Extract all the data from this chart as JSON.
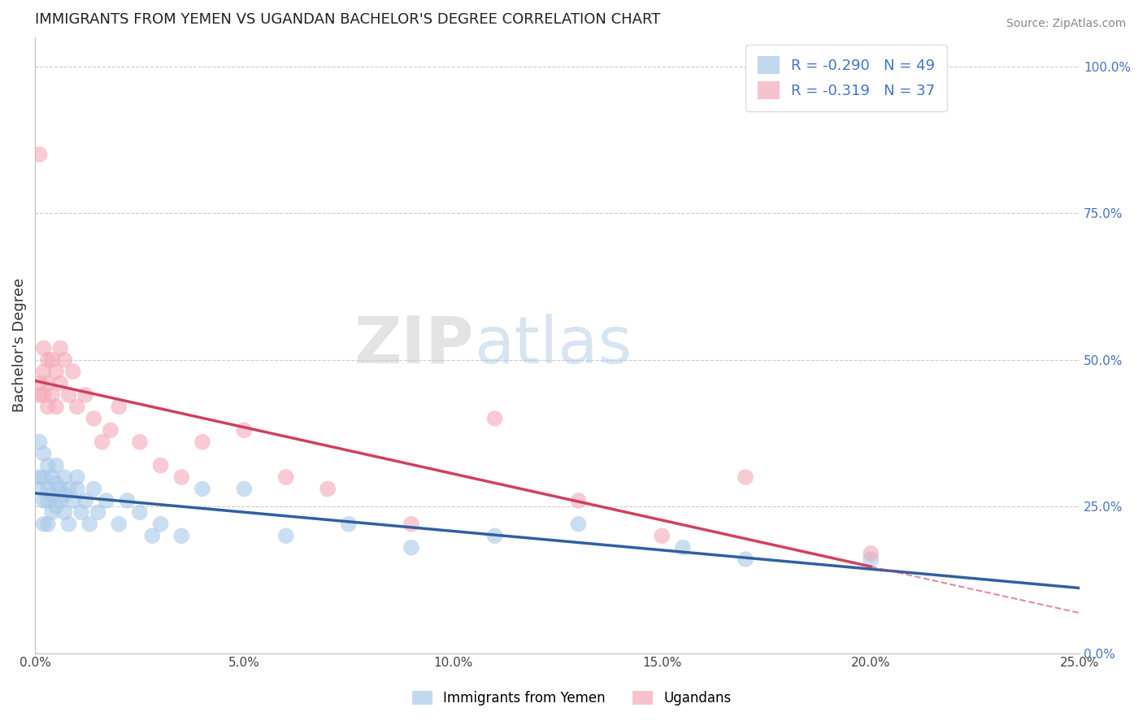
{
  "title": "IMMIGRANTS FROM YEMEN VS UGANDAN BACHELOR'S DEGREE CORRELATION CHART",
  "source": "Source: ZipAtlas.com",
  "ylabel": "Bachelor's Degree",
  "legend_labels": [
    "Immigrants from Yemen",
    "Ugandans"
  ],
  "blue_R": -0.29,
  "blue_N": 49,
  "pink_R": -0.319,
  "pink_N": 37,
  "blue_color": "#a8c8e8",
  "pink_color": "#f4a8b8",
  "blue_line_color": "#3060a0",
  "pink_line_color": "#d04060",
  "xlim": [
    0.0,
    0.25
  ],
  "ylim": [
    0.0,
    1.05
  ],
  "xticks": [
    0.0,
    0.05,
    0.1,
    0.15,
    0.2,
    0.25
  ],
  "xtick_labels": [
    "0.0%",
    "5.0%",
    "10.0%",
    "15.0%",
    "20.0%",
    "25.0%"
  ],
  "yticks_right": [
    0.0,
    0.25,
    0.5,
    0.75,
    1.0
  ],
  "ytick_labels_right": [
    "0.0%",
    "25.0%",
    "50.0%",
    "75.0%",
    "100.0%"
  ],
  "watermark_zip": "ZIP",
  "watermark_atlas": "atlas",
  "blue_scatter_x": [
    0.001,
    0.001,
    0.001,
    0.002,
    0.002,
    0.002,
    0.002,
    0.003,
    0.003,
    0.003,
    0.003,
    0.004,
    0.004,
    0.004,
    0.005,
    0.005,
    0.005,
    0.006,
    0.006,
    0.007,
    0.007,
    0.007,
    0.008,
    0.008,
    0.009,
    0.01,
    0.01,
    0.011,
    0.012,
    0.013,
    0.014,
    0.015,
    0.017,
    0.02,
    0.022,
    0.025,
    0.028,
    0.03,
    0.035,
    0.04,
    0.05,
    0.06,
    0.075,
    0.09,
    0.11,
    0.13,
    0.155,
    0.17,
    0.2
  ],
  "blue_scatter_y": [
    0.3,
    0.28,
    0.36,
    0.26,
    0.3,
    0.34,
    0.22,
    0.28,
    0.32,
    0.26,
    0.22,
    0.3,
    0.27,
    0.24,
    0.29,
    0.25,
    0.32,
    0.26,
    0.28,
    0.3,
    0.24,
    0.27,
    0.28,
    0.22,
    0.26,
    0.28,
    0.3,
    0.24,
    0.26,
    0.22,
    0.28,
    0.24,
    0.26,
    0.22,
    0.26,
    0.24,
    0.2,
    0.22,
    0.2,
    0.28,
    0.28,
    0.2,
    0.22,
    0.18,
    0.2,
    0.22,
    0.18,
    0.16,
    0.16
  ],
  "pink_scatter_x": [
    0.001,
    0.001,
    0.001,
    0.002,
    0.002,
    0.002,
    0.003,
    0.003,
    0.003,
    0.004,
    0.004,
    0.005,
    0.005,
    0.006,
    0.006,
    0.007,
    0.008,
    0.009,
    0.01,
    0.012,
    0.014,
    0.016,
    0.018,
    0.02,
    0.025,
    0.03,
    0.035,
    0.04,
    0.05,
    0.06,
    0.07,
    0.09,
    0.11,
    0.13,
    0.15,
    0.17,
    0.2
  ],
  "pink_scatter_y": [
    0.85,
    0.46,
    0.44,
    0.52,
    0.48,
    0.44,
    0.5,
    0.46,
    0.42,
    0.5,
    0.44,
    0.48,
    0.42,
    0.52,
    0.46,
    0.5,
    0.44,
    0.48,
    0.42,
    0.44,
    0.4,
    0.36,
    0.38,
    0.42,
    0.36,
    0.32,
    0.3,
    0.36,
    0.38,
    0.3,
    0.28,
    0.22,
    0.4,
    0.26,
    0.2,
    0.3,
    0.17
  ]
}
